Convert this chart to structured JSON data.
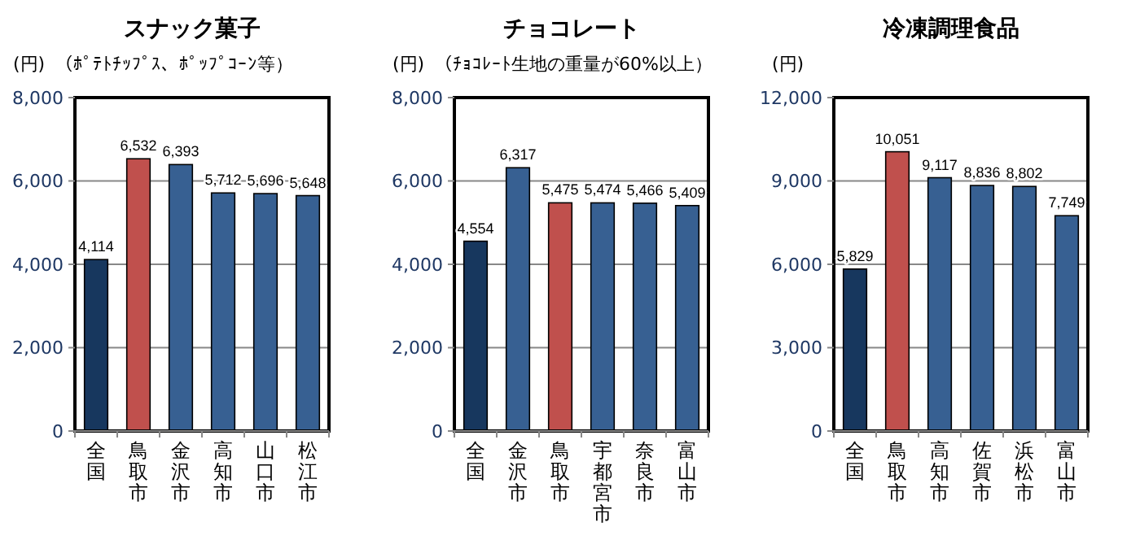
{
  "chart_data": [
    {
      "type": "bar",
      "title": "スナック菓子",
      "subtitle": "（ﾎﾟﾃﾄﾁｯﾌﾟｽ、ﾎﾟｯﾌﾟｺｰﾝ等）",
      "ylabel": "(円)",
      "categories": [
        "全国",
        "鳥取市",
        "金沢市",
        "高知市",
        "山口市",
        "松江市"
      ],
      "values": [
        4114,
        6532,
        6393,
        5712,
        5696,
        5648
      ],
      "value_labels": [
        "4,114",
        "6,532",
        "6,393",
        "5,712",
        "5,696",
        "5,648"
      ],
      "colors": [
        "#17375e",
        "#c0504d",
        "#376092",
        "#376092",
        "#376092",
        "#376092"
      ],
      "ylim": [
        0,
        8000
      ],
      "yticks": [
        {
          "value": 0,
          "label": "0"
        },
        {
          "value": 2000,
          "label": "2,000"
        },
        {
          "value": 4000,
          "label": "4,000"
        },
        {
          "value": 6000,
          "label": "6,000"
        },
        {
          "value": 8000,
          "label": "8,000"
        }
      ],
      "grid": "y"
    },
    {
      "type": "bar",
      "title": "チョコレート",
      "subtitle": "（ﾁｮｺﾚｰﾄ生地の重量が60%以上）",
      "ylabel": "(円)",
      "categories": [
        "全国",
        "金沢市",
        "鳥取市",
        "宇都宮市",
        "奈良市",
        "富山市"
      ],
      "values": [
        4554,
        6317,
        5475,
        5474,
        5466,
        5409
      ],
      "value_labels": [
        "4,554",
        "6,317",
        "5,475",
        "5,474",
        "5,466",
        "5,409"
      ],
      "colors": [
        "#17375e",
        "#376092",
        "#c0504d",
        "#376092",
        "#376092",
        "#376092"
      ],
      "ylim": [
        0,
        8000
      ],
      "yticks": [
        {
          "value": 0,
          "label": "0"
        },
        {
          "value": 2000,
          "label": "2,000"
        },
        {
          "value": 4000,
          "label": "4,000"
        },
        {
          "value": 6000,
          "label": "6,000"
        },
        {
          "value": 8000,
          "label": "8,000"
        }
      ],
      "grid": "y"
    },
    {
      "type": "bar",
      "title": "冷凍調理食品",
      "ylabel": "(円)",
      "categories": [
        "全国",
        "鳥取市",
        "高知市",
        "佐賀市",
        "浜松市",
        "富山市"
      ],
      "values": [
        5829,
        10051,
        9117,
        8836,
        8802,
        7749
      ],
      "value_labels": [
        "5,829",
        "10,051",
        "9,117",
        "8,836",
        "8,802",
        "7,749"
      ],
      "colors": [
        "#17375e",
        "#c0504d",
        "#376092",
        "#376092",
        "#376092",
        "#376092"
      ],
      "ylim": [
        0,
        12000
      ],
      "yticks": [
        {
          "value": 0,
          "label": "0"
        },
        {
          "value": 3000,
          "label": "3,000"
        },
        {
          "value": 6000,
          "label": "6,000"
        },
        {
          "value": 9000,
          "label": "9,000"
        },
        {
          "value": 12000,
          "label": "12,000"
        }
      ],
      "grid": "y"
    }
  ]
}
